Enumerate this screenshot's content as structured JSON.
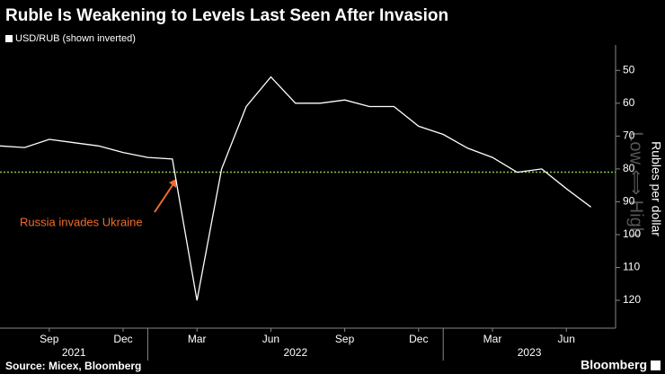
{
  "chart_data": {
    "type": "line",
    "title": "Ruble Is Weakening to Levels Last Seen After Invasion",
    "source": "Source: Micex, Bloomberg",
    "brand": "Bloomberg",
    "y_label": "Rubles per dollar",
    "y_note": "Low ⟺ High",
    "annotation": "Russia invades Ukraine",
    "annotation_color": "#f26b2a",
    "x": [
      "2021-07",
      "2021-08",
      "2021-09",
      "2021-10",
      "2021-11",
      "2021-12",
      "2022-01",
      "2022-02",
      "2022-03",
      "2022-04",
      "2022-05",
      "2022-06",
      "2022-07",
      "2022-08",
      "2022-09",
      "2022-10",
      "2022-11",
      "2022-12",
      "2023-01",
      "2023-02",
      "2023-03",
      "2023-04",
      "2023-05",
      "2023-06",
      "2023-07"
    ],
    "series": [
      {
        "name": "USD/RUB (shown inverted)",
        "color": "#ffffff",
        "values": [
          73,
          73.5,
          71,
          72,
          73,
          75,
          76.5,
          77,
          120,
          80,
          61,
          52,
          60,
          60,
          59,
          61,
          61,
          67,
          69.5,
          73.7,
          76.5,
          81,
          80,
          86,
          91.6
        ]
      }
    ],
    "xlim": [
      "2021-07",
      "2023-08"
    ],
    "xticks": [
      {
        "value": "2021-09",
        "label": "Sep"
      },
      {
        "value": "2021-12",
        "label": "Dec"
      },
      {
        "value": "2022-03",
        "label": "Mar"
      },
      {
        "value": "2022-06",
        "label": "Jun"
      },
      {
        "value": "2022-09",
        "label": "Sep"
      },
      {
        "value": "2022-12",
        "label": "Dec"
      },
      {
        "value": "2023-03",
        "label": "Mar"
      },
      {
        "value": "2023-06",
        "label": "Jun"
      }
    ],
    "years": [
      "2021",
      "2022",
      "2023"
    ],
    "ylim": [
      45,
      126
    ],
    "yticks": [
      50,
      60,
      70,
      80,
      90,
      100,
      110,
      120
    ],
    "y_inverted": true,
    "hline": {
      "value": 81,
      "color": "#8bc34a"
    }
  }
}
